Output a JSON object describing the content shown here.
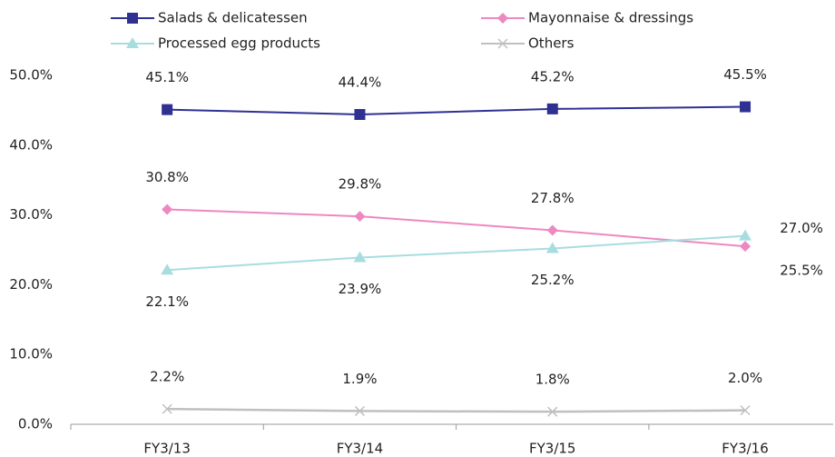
{
  "chart_data": {
    "type": "line",
    "categories": [
      "FY3/13",
      "FY3/14",
      "FY3/15",
      "FY3/16"
    ],
    "series": [
      {
        "name": "Salads & delicatessen",
        "color": "#2e3192",
        "marker": "square",
        "values": [
          45.1,
          44.4,
          45.2,
          45.5
        ],
        "value_labels": [
          "45.1%",
          "44.4%",
          "45.2%",
          "45.5%"
        ]
      },
      {
        "name": "Mayonnaise & dressings",
        "color": "#ee88c0",
        "marker": "diamond",
        "values": [
          30.8,
          29.8,
          27.8,
          25.5
        ],
        "value_labels": [
          "30.8%",
          "29.8%",
          "27.8%",
          "25.5%"
        ]
      },
      {
        "name": "Processed egg products",
        "color": "#a8dde0",
        "marker": "triangle",
        "values": [
          22.1,
          23.9,
          25.2,
          27.0
        ],
        "value_labels": [
          "22.1%",
          "23.9%",
          "25.2%",
          "27.0%"
        ]
      },
      {
        "name": "Others",
        "color": "#c0c0c0",
        "marker": "x",
        "values": [
          2.2,
          1.9,
          1.8,
          2.0
        ],
        "value_labels": [
          "2.2%",
          "1.9%",
          "1.8%",
          "2.0%"
        ]
      }
    ],
    "ylim": [
      0,
      50
    ],
    "yticks": [
      {
        "value": 0,
        "label": "0.0%"
      },
      {
        "value": 10,
        "label": "10.0%"
      },
      {
        "value": 20,
        "label": "20.0%"
      },
      {
        "value": 30,
        "label": "30.0%"
      },
      {
        "value": 40,
        "label": "40.0%"
      },
      {
        "value": 50,
        "label": "50.0%"
      }
    ],
    "grid": false,
    "legend": "top"
  }
}
